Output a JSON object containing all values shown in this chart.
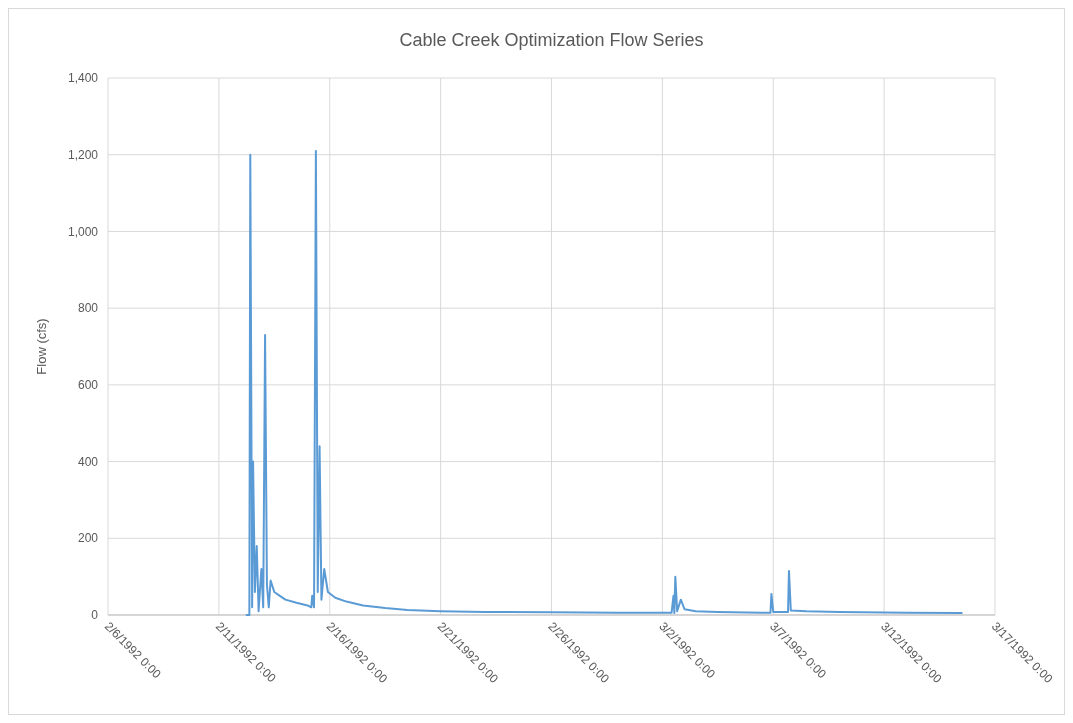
{
  "chart_data": {
    "type": "line",
    "title": "Cable Creek Optimization Flow Series",
    "ylabel": "Flow (cfs)",
    "x": [
      "1992-02-12T06:00",
      "1992-02-12T09:00",
      "1992-02-12T10:00",
      "1992-02-12T12:00",
      "1992-02-12T13:00",
      "1992-02-12T15:00",
      "1992-02-12T17:00",
      "1992-02-12T19:00",
      "1992-02-12T22:00",
      "1992-02-13T00:00",
      "1992-02-13T02:00",
      "1992-02-13T04:00",
      "1992-02-13T06:00",
      "1992-02-13T08:00",
      "1992-02-13T12:00",
      "1992-02-13T18:00",
      "1992-02-14T00:00",
      "1992-02-14T12:00",
      "1992-02-15T00:00",
      "1992-02-15T04:00",
      "1992-02-15T05:00",
      "1992-02-15T07:00",
      "1992-02-15T09:00",
      "1992-02-15T11:00",
      "1992-02-15T13:00",
      "1992-02-15T15:00",
      "1992-02-15T18:00",
      "1992-02-15T22:00",
      "1992-02-16T06:00",
      "1992-02-16T18:00",
      "1992-02-17T12:00",
      "1992-02-18T12:00",
      "1992-02-19T12:00",
      "1992-02-21T00:00",
      "1992-02-23T00:00",
      "1992-02-26T00:00",
      "1992-02-29T00:00",
      "1992-03-02T00:00",
      "1992-03-02T10:00",
      "1992-03-02T12:00",
      "1992-03-02T13:00",
      "1992-03-02T14:00",
      "1992-03-02T16:00",
      "1992-03-02T20:00",
      "1992-03-03T00:00",
      "1992-03-03T12:00",
      "1992-03-04T12:00",
      "1992-03-06T12:00",
      "1992-03-06T21:00",
      "1992-03-06T22:00",
      "1992-03-07T00:00",
      "1992-03-07T16:00",
      "1992-03-07T17:00",
      "1992-03-07T19:00",
      "1992-03-08T12:00",
      "1992-03-10T00:00",
      "1992-03-13T00:00",
      "1992-03-15T12:00"
    ],
    "series": [
      {
        "color": "#5b9bd5",
        "values": [
          0,
          0,
          1200,
          20,
          400,
          60,
          180,
          10,
          120,
          20,
          730,
          80,
          20,
          90,
          60,
          50,
          40,
          32,
          25,
          20,
          50,
          20,
          1210,
          60,
          440,
          40,
          120,
          60,
          45,
          35,
          25,
          18,
          13,
          10,
          8,
          7,
          6,
          6,
          6,
          50,
          5,
          100,
          10,
          40,
          15,
          10,
          8,
          6,
          6,
          55,
          8,
          8,
          115,
          12,
          10,
          8,
          6,
          5
        ]
      }
    ],
    "xlim": [
      "1992-02-06T00:00",
      "1992-03-17T00:00"
    ],
    "xticks": [
      {
        "value": "1992-02-06T00:00",
        "label": "2/6/1992 0:00"
      },
      {
        "value": "1992-02-11T00:00",
        "label": "2/11/1992 0:00"
      },
      {
        "value": "1992-02-16T00:00",
        "label": "2/16/1992 0:00"
      },
      {
        "value": "1992-02-21T00:00",
        "label": "2/21/1992 0:00"
      },
      {
        "value": "1992-02-26T00:00",
        "label": "2/26/1992 0:00"
      },
      {
        "value": "1992-03-02T00:00",
        "label": "3/2/1992 0:00"
      },
      {
        "value": "1992-03-07T00:00",
        "label": "3/7/1992 0:00"
      },
      {
        "value": "1992-03-12T00:00",
        "label": "3/12/1992 0:00"
      },
      {
        "value": "1992-03-17T00:00",
        "label": "3/17/1992 0:00"
      }
    ],
    "ylim": [
      0,
      1400
    ],
    "yticks": [
      0,
      {
        "value": 200,
        "label": "200"
      },
      {
        "value": 400,
        "label": "400"
      },
      {
        "value": 600,
        "label": "600"
      },
      {
        "value": 800,
        "label": "800"
      },
      {
        "value": 1000,
        "label": "1,000"
      },
      {
        "value": 1200,
        "label": "1,200"
      },
      {
        "value": 1400,
        "label": "1,400"
      }
    ],
    "grid": true,
    "marker": "none",
    "line_style": "solid"
  }
}
